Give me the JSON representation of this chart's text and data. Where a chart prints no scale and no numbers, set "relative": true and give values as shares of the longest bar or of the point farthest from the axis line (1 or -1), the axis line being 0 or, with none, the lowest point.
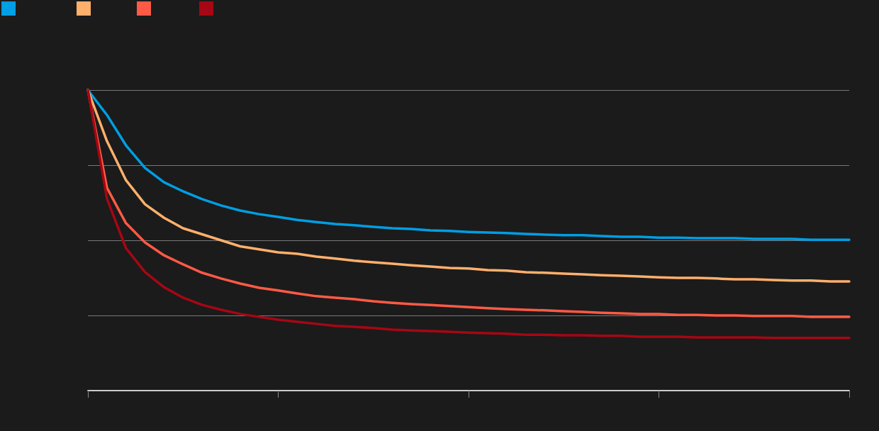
{
  "chart_data": {
    "type": "line",
    "relative": true,
    "grid": "y",
    "marker": "none",
    "line_style": "solid",
    "categories": [
      null,
      null,
      null,
      null,
      null,
      null,
      null,
      null,
      null,
      null,
      null,
      null,
      null,
      null,
      null,
      null,
      null,
      null,
      null,
      null,
      null,
      null,
      null,
      null,
      null,
      null,
      null,
      null,
      null,
      null,
      null,
      null,
      null,
      null,
      null,
      null,
      null,
      null,
      null,
      null,
      null
    ],
    "series": [
      {
        "color": "#009ee3",
        "values": [
          1.0,
          0.917,
          0.816,
          0.741,
          0.693,
          0.663,
          0.637,
          0.616,
          0.599,
          0.587,
          0.578,
          0.568,
          0.561,
          0.554,
          0.55,
          0.545,
          0.54,
          0.538,
          0.533,
          0.531,
          0.528,
          0.526,
          0.524,
          0.521,
          0.519,
          0.517,
          0.517,
          0.514,
          0.512,
          0.512,
          0.509,
          0.509,
          0.507,
          0.507,
          0.507,
          0.505,
          0.505,
          0.505,
          0.502,
          0.502,
          0.502
        ]
      },
      {
        "color": "#ffb06c",
        "values": [
          1.0,
          0.83,
          0.7,
          0.62,
          0.575,
          0.54,
          0.52,
          0.5,
          0.48,
          0.47,
          0.46,
          0.455,
          0.446,
          0.439,
          0.432,
          0.427,
          0.422,
          0.417,
          0.413,
          0.408,
          0.406,
          0.401,
          0.399,
          0.394,
          0.392,
          0.389,
          0.387,
          0.384,
          0.382,
          0.38,
          0.377,
          0.375,
          0.375,
          0.373,
          0.37,
          0.37,
          0.368,
          0.366,
          0.366,
          0.363,
          0.363
        ]
      },
      {
        "color": "#ff5a45",
        "values": [
          1.0,
          0.675,
          0.557,
          0.493,
          0.45,
          0.42,
          0.392,
          0.373,
          0.356,
          0.342,
          0.333,
          0.323,
          0.314,
          0.309,
          0.304,
          0.297,
          0.292,
          0.288,
          0.285,
          0.281,
          0.278,
          0.274,
          0.271,
          0.269,
          0.267,
          0.264,
          0.262,
          0.259,
          0.257,
          0.255,
          0.255,
          0.252,
          0.252,
          0.25,
          0.25,
          0.248,
          0.248,
          0.248,
          0.245,
          0.245,
          0.245
        ]
      },
      {
        "color": "#a50714",
        "values": [
          1.0,
          0.639,
          0.474,
          0.394,
          0.344,
          0.309,
          0.285,
          0.269,
          0.255,
          0.245,
          0.236,
          0.229,
          0.222,
          0.215,
          0.212,
          0.208,
          0.203,
          0.2,
          0.198,
          0.196,
          0.193,
          0.191,
          0.189,
          0.186,
          0.186,
          0.184,
          0.184,
          0.182,
          0.182,
          0.179,
          0.179,
          0.179,
          0.177,
          0.177,
          0.177,
          0.177,
          0.175,
          0.175,
          0.175,
          0.175,
          0.175
        ]
      }
    ]
  }
}
